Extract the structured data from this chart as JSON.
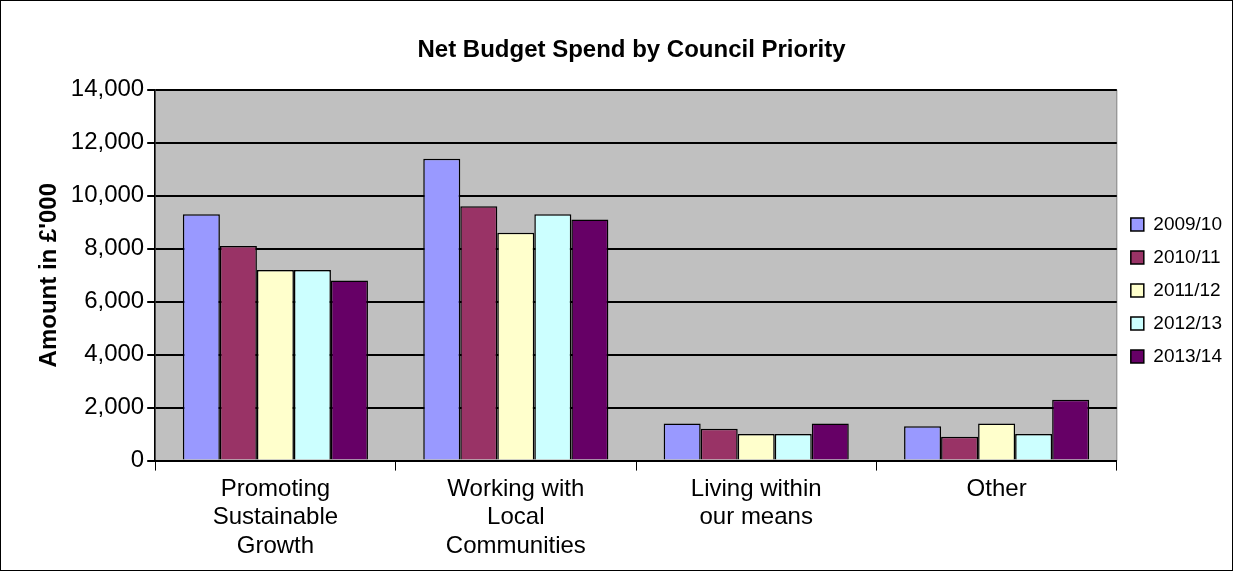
{
  "chart_data": {
    "type": "bar",
    "title": "Net Budget Spend by Council Priority",
    "ylabel": "Amount in £'000",
    "categories": [
      "Promoting Sustainable Growth",
      "Working with Local Communities",
      "Living within our means",
      "Other"
    ],
    "series": [
      {
        "name": "2009/10",
        "color": "#9999ff",
        "values": [
          9300,
          11400,
          1400,
          1300
        ]
      },
      {
        "name": "2010/11",
        "color": "#993366",
        "values": [
          8100,
          9600,
          1200,
          900
        ]
      },
      {
        "name": "2011/12",
        "color": "#ffffcc",
        "values": [
          7200,
          8600,
          1000,
          1400
        ]
      },
      {
        "name": "2012/13",
        "color": "#ccffff",
        "values": [
          7200,
          9300,
          1000,
          1000
        ]
      },
      {
        "name": "2013/14",
        "color": "#660066",
        "values": [
          6800,
          9100,
          1400,
          2300
        ]
      }
    ],
    "ylim": [
      0,
      14000
    ],
    "yticks": [
      0,
      {
        "value": 2000,
        "label": "2,000"
      },
      {
        "value": 4000,
        "label": "4,000"
      },
      {
        "value": 6000,
        "label": "6,000"
      },
      {
        "value": 8000,
        "label": "8,000"
      },
      {
        "value": 10000,
        "label": "10,000"
      },
      {
        "value": 12000,
        "label": "12,000"
      },
      {
        "value": 14000,
        "label": "14,000"
      }
    ],
    "grid": "y",
    "legend": "right"
  }
}
